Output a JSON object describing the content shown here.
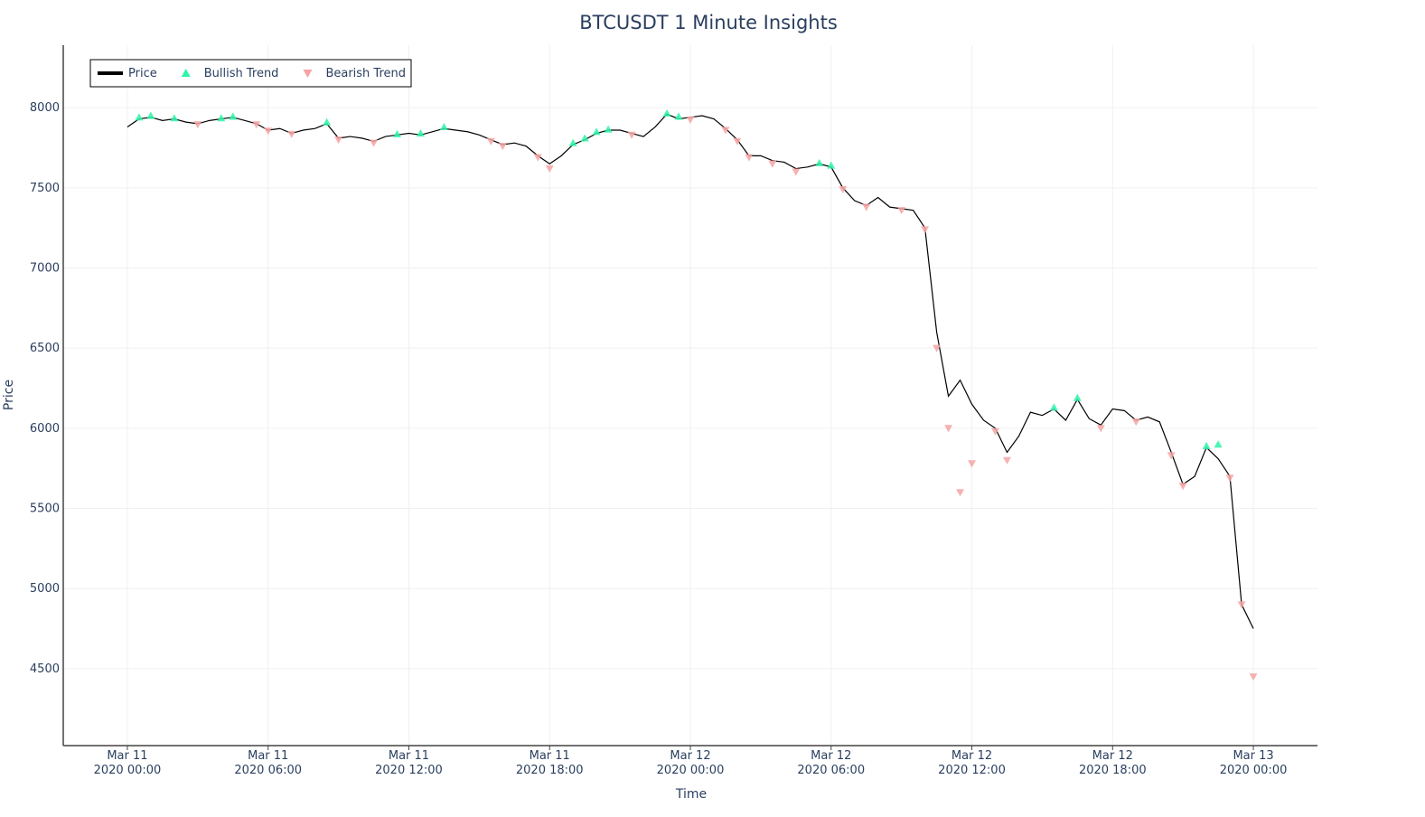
{
  "chart_data": {
    "type": "line",
    "title": "BTCUSDT 1 Minute Insights",
    "x_label": "Time",
    "y_label": "Price",
    "xlim": [
      "2020-03-10 21:16",
      "2020-03-13 02:44"
    ],
    "ylim": [
      4020,
      8390
    ],
    "yticks": [
      4500,
      5000,
      5500,
      6000,
      6500,
      7000,
      7500,
      8000
    ],
    "xticks": [
      {
        "value": "2020-03-11 00:00",
        "label": "Mar 11\n2020 00:00"
      },
      {
        "value": "2020-03-11 06:00",
        "label": "Mar 11\n2020 06:00"
      },
      {
        "value": "2020-03-11 12:00",
        "label": "Mar 11\n2020 12:00"
      },
      {
        "value": "2020-03-11 18:00",
        "label": "Mar 11\n2020 18:00"
      },
      {
        "value": "2020-03-12 00:00",
        "label": "Mar 12\n2020 00:00"
      },
      {
        "value": "2020-03-12 06:00",
        "label": "Mar 12\n2020 06:00"
      },
      {
        "value": "2020-03-12 12:00",
        "label": "Mar 12\n2020 12:00"
      },
      {
        "value": "2020-03-12 18:00",
        "label": "Mar 12\n2020 18:00"
      },
      {
        "value": "2020-03-13 00:00",
        "label": "Mar 13\n2020 00:00"
      }
    ],
    "grid": true,
    "legend": "upper-left",
    "series": [
      {
        "name": "Price",
        "color": "#000000",
        "mode": "line",
        "x": [
          "2020-03-11 00:00",
          "2020-03-11 00:30",
          "2020-03-11 01:00",
          "2020-03-11 01:30",
          "2020-03-11 02:00",
          "2020-03-11 02:30",
          "2020-03-11 03:00",
          "2020-03-11 03:30",
          "2020-03-11 04:00",
          "2020-03-11 04:30",
          "2020-03-11 05:00",
          "2020-03-11 05:30",
          "2020-03-11 06:00",
          "2020-03-11 06:30",
          "2020-03-11 07:00",
          "2020-03-11 07:30",
          "2020-03-11 08:00",
          "2020-03-11 08:30",
          "2020-03-11 09:00",
          "2020-03-11 09:30",
          "2020-03-11 10:00",
          "2020-03-11 10:30",
          "2020-03-11 11:00",
          "2020-03-11 11:30",
          "2020-03-11 12:00",
          "2020-03-11 12:30",
          "2020-03-11 13:00",
          "2020-03-11 13:30",
          "2020-03-11 14:00",
          "2020-03-11 14:30",
          "2020-03-11 15:00",
          "2020-03-11 15:30",
          "2020-03-11 16:00",
          "2020-03-11 16:30",
          "2020-03-11 17:00",
          "2020-03-11 17:30",
          "2020-03-11 18:00",
          "2020-03-11 18:30",
          "2020-03-11 19:00",
          "2020-03-11 19:30",
          "2020-03-11 20:00",
          "2020-03-11 20:30",
          "2020-03-11 21:00",
          "2020-03-11 21:30",
          "2020-03-11 22:00",
          "2020-03-11 22:30",
          "2020-03-11 23:00",
          "2020-03-11 23:30",
          "2020-03-12 00:00",
          "2020-03-12 00:30",
          "2020-03-12 01:00",
          "2020-03-12 01:30",
          "2020-03-12 02:00",
          "2020-03-12 02:30",
          "2020-03-12 03:00",
          "2020-03-12 03:30",
          "2020-03-12 04:00",
          "2020-03-12 04:30",
          "2020-03-12 05:00",
          "2020-03-12 05:30",
          "2020-03-12 06:00",
          "2020-03-12 06:30",
          "2020-03-12 07:00",
          "2020-03-12 07:30",
          "2020-03-12 08:00",
          "2020-03-12 08:30",
          "2020-03-12 09:00",
          "2020-03-12 09:30",
          "2020-03-12 10:00",
          "2020-03-12 10:30",
          "2020-03-12 11:00",
          "2020-03-12 11:30",
          "2020-03-12 12:00",
          "2020-03-12 12:30",
          "2020-03-12 13:00",
          "2020-03-12 13:30",
          "2020-03-12 14:00",
          "2020-03-12 14:30",
          "2020-03-12 15:00",
          "2020-03-12 15:30",
          "2020-03-12 16:00",
          "2020-03-12 16:30",
          "2020-03-12 17:00",
          "2020-03-12 17:30",
          "2020-03-12 18:00",
          "2020-03-12 18:30",
          "2020-03-12 19:00",
          "2020-03-12 19:30",
          "2020-03-12 20:00",
          "2020-03-12 20:30",
          "2020-03-12 21:00",
          "2020-03-12 21:30",
          "2020-03-12 22:00",
          "2020-03-12 22:30",
          "2020-03-12 23:00",
          "2020-03-12 23:30",
          "2020-03-13 00:00"
        ],
        "values": [
          7880,
          7930,
          7940,
          7920,
          7930,
          7910,
          7900,
          7920,
          7930,
          7940,
          7920,
          7900,
          7860,
          7870,
          7840,
          7860,
          7870,
          7900,
          7810,
          7820,
          7810,
          7790,
          7820,
          7830,
          7840,
          7830,
          7850,
          7870,
          7860,
          7850,
          7830,
          7800,
          7770,
          7780,
          7760,
          7700,
          7650,
          7700,
          7770,
          7800,
          7840,
          7860,
          7860,
          7840,
          7820,
          7880,
          7960,
          7930,
          7940,
          7950,
          7930,
          7870,
          7800,
          7700,
          7700,
          7670,
          7660,
          7620,
          7630,
          7650,
          7630,
          7500,
          7420,
          7390,
          7440,
          7380,
          7370,
          7360,
          7250,
          6600,
          6200,
          6300,
          6150,
          6050,
          6000,
          5850,
          5950,
          6100,
          6080,
          6120,
          6050,
          6180,
          6060,
          6020,
          6120,
          6110,
          6050,
          6070,
          6040,
          5850,
          5650,
          5700,
          5880,
          5810,
          5700,
          4900,
          4750
        ]
      },
      {
        "name": "Bullish Trend",
        "color": "#2ef5a8",
        "mode": "triangle-up",
        "x": [
          "2020-03-11 00:30",
          "2020-03-11 01:00",
          "2020-03-11 02:00",
          "2020-03-11 04:00",
          "2020-03-11 04:30",
          "2020-03-11 08:30",
          "2020-03-11 11:30",
          "2020-03-11 12:30",
          "2020-03-11 13:30",
          "2020-03-11 19:00",
          "2020-03-11 19:30",
          "2020-03-11 20:00",
          "2020-03-11 20:30",
          "2020-03-11 23:00",
          "2020-03-11 23:30",
          "2020-03-12 05:30",
          "2020-03-12 06:00",
          "2020-03-12 15:30",
          "2020-03-12 16:30",
          "2020-03-12 22:00",
          "2020-03-12 22:30"
        ],
        "values": [
          7940,
          7950,
          7935,
          7935,
          7945,
          7910,
          7835,
          7840,
          7880,
          7780,
          7810,
          7850,
          7865,
          7965,
          7945,
          7655,
          7640,
          6130,
          6190,
          5890,
          5900
        ]
      },
      {
        "name": "Bearish Trend",
        "color": "#f6a3a3",
        "mode": "triangle-down",
        "x": [
          "2020-03-11 03:00",
          "2020-03-11 05:30",
          "2020-03-11 06:00",
          "2020-03-11 07:00",
          "2020-03-11 09:00",
          "2020-03-11 10:30",
          "2020-03-11 15:30",
          "2020-03-11 16:00",
          "2020-03-11 17:30",
          "2020-03-11 18:00",
          "2020-03-11 21:30",
          "2020-03-12 00:00",
          "2020-03-12 01:30",
          "2020-03-12 02:00",
          "2020-03-12 02:30",
          "2020-03-12 03:30",
          "2020-03-12 04:30",
          "2020-03-12 06:30",
          "2020-03-12 07:30",
          "2020-03-12 09:00",
          "2020-03-12 10:00",
          "2020-03-12 10:30",
          "2020-03-12 11:00",
          "2020-03-12 11:30",
          "2020-03-12 12:00",
          "2020-03-12 13:00",
          "2020-03-12 13:30",
          "2020-03-12 17:30",
          "2020-03-12 19:00",
          "2020-03-12 20:30",
          "2020-03-12 21:00",
          "2020-03-12 23:00",
          "2020-03-12 23:30",
          "2020-03-13 00:00"
        ],
        "values": [
          7895,
          7895,
          7855,
          7835,
          7800,
          7780,
          7790,
          7760,
          7690,
          7620,
          7830,
          7925,
          7860,
          7790,
          7690,
          7650,
          7600,
          7490,
          7380,
          7360,
          7240,
          6500,
          6000,
          5600,
          5780,
          5980,
          5800,
          6000,
          6040,
          5830,
          5640,
          5690,
          4900,
          4450
        ]
      }
    ]
  }
}
